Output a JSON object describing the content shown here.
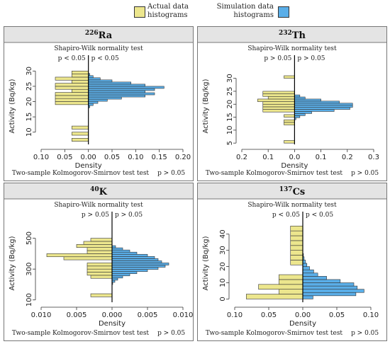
{
  "legend": {
    "actual": {
      "label_line1": "Actual data",
      "label_line2": "histograms",
      "color": "#ece68d"
    },
    "simulation": {
      "label_line1": "Simulation data",
      "label_line2": "histograms",
      "color": "#5aaee8"
    }
  },
  "chart_data": [
    {
      "type": "bar",
      "title": "Ra",
      "title_superscript": "226",
      "subtitle": "Shapiro-Wilk normality test",
      "sw_left": "p < 0.05",
      "sw_right": "p < 0.05",
      "ks_test": "Two-sample Kolmogorov-Smirnov test test",
      "ks_p": "p > 0.05",
      "xlabel": "Density",
      "ylabel": "Activity (Bq/kg)",
      "xlim": [
        -0.1,
        0.2
      ],
      "ylim": [
        6,
        31
      ],
      "xticks": [
        -0.1,
        -0.05,
        0.0,
        0.05,
        0.1,
        0.15,
        0.2
      ],
      "xtick_labels": [
        "0.10",
        "0.05",
        "0.00",
        "0.05",
        "0.10",
        "0.15",
        "0.20"
      ],
      "yticks": [
        10,
        15,
        20,
        25,
        30
      ],
      "ytick_labels": [
        "10",
        "15",
        "20",
        "25",
        "30"
      ],
      "actual": {
        "edges_from": 7.0,
        "width": 1.0,
        "density": [
          0.035,
          0,
          0.035,
          0,
          0.035,
          0,
          0,
          0,
          0,
          0,
          0,
          0,
          0.07,
          0.07,
          0.07,
          0.07,
          0.035,
          0.07,
          0.07,
          0.035,
          0.07,
          0.035,
          0.035,
          0
        ]
      },
      "simulation": {
        "edges_from": 18.0,
        "width": 0.7,
        "density": [
          0.003,
          0.01,
          0.02,
          0.04,
          0.07,
          0.12,
          0.14,
          0.12,
          0.14,
          0.16,
          0.12,
          0.09,
          0.05,
          0.025,
          0.01,
          0.003
        ]
      }
    },
    {
      "type": "bar",
      "title": "Th",
      "title_superscript": "232",
      "subtitle": "Shapiro-Wilk normality test",
      "sw_left": "p > 0.05",
      "sw_right": "p > 0.05",
      "ks_test": "Two-sample Kolmogorov-Smirnov test test",
      "ks_p": "p > 0.05",
      "xlabel": "Density",
      "ylabel": "Activity (Bq/kg)",
      "xlim": [
        -0.2,
        0.3
      ],
      "ylim": [
        4.5,
        34
      ],
      "xticks": [
        -0.2,
        -0.1,
        0.0,
        0.1,
        0.2,
        0.3
      ],
      "xtick_labels": [
        "0.2",
        "0.1",
        "0.0",
        "0.1",
        "0.2",
        "0.3"
      ],
      "yticks": [
        5,
        10,
        15,
        20,
        25,
        30
      ],
      "ytick_labels": [
        "5",
        "10",
        "15",
        "20",
        "25",
        "30"
      ],
      "actual": {
        "edges_from": 5.0,
        "width": 1.0,
        "density": [
          0.04,
          0,
          0,
          0,
          0,
          0,
          0,
          0.04,
          0.04,
          0,
          0.04,
          0,
          0.12,
          0.12,
          0.12,
          0.12,
          0.14,
          0.1,
          0.12,
          0.12,
          0,
          0,
          0,
          0,
          0,
          0.04
        ]
      },
      "simulation": {
        "edges_from": 14.0,
        "width": 0.8,
        "density": [
          0.005,
          0.02,
          0.04,
          0.065,
          0.15,
          0.21,
          0.22,
          0.22,
          0.17,
          0.1,
          0.04,
          0.02
        ]
      }
    },
    {
      "type": "bar",
      "title": "K",
      "title_superscript": "40",
      "subtitle": "Shapiro-Wilk normality test",
      "sw_left": "p > 0.05",
      "sw_right": "p > 0.05",
      "ks_test": "Two-sample Kolmogorov-Smirnov test test",
      "ks_p": "p > 0.05",
      "xlabel": "Density",
      "ylabel": "Activity (Bq/kg)",
      "xlim": [
        -0.01,
        0.01
      ],
      "ylim": [
        85,
        590
      ],
      "xticks": [
        -0.01,
        -0.005,
        0.0,
        0.005,
        0.01
      ],
      "xtick_labels": [
        "0.010",
        "0.005",
        "0.000",
        "0.005",
        "0.010"
      ],
      "yticks": [
        100,
        300,
        500
      ],
      "ytick_labels": [
        "100",
        "300",
        "500"
      ],
      "actual": {
        "edges_from": 120,
        "width": 20,
        "density": [
          0.003,
          0,
          0,
          0,
          0,
          0,
          0.003,
          0.0035,
          0.0035,
          0.0035,
          0.0035,
          0,
          0.0068,
          0.0092,
          0.0035,
          0.0035,
          0.005,
          0.004,
          0.003
        ]
      },
      "simulation": {
        "edges_from": 200,
        "width": 14,
        "density": [
          0.0001,
          0.0004,
          0.0008,
          0.0015,
          0.0025,
          0.0035,
          0.005,
          0.0065,
          0.0075,
          0.008,
          0.007,
          0.0065,
          0.006,
          0.005,
          0.0035,
          0.0025,
          0.0015,
          0.0005
        ]
      }
    },
    {
      "type": "bar",
      "title": "Cs",
      "title_superscript": "137",
      "subtitle": "Shapiro-Wilk normality test",
      "sw_left": "p < 0.05",
      "sw_right": "p < 0.05",
      "ks_test": "Two-sample Kolmogorov-Smirnov test test",
      "ks_p": "p > 0.05",
      "xlabel": "Density",
      "ylabel": "Activity (Bq/kg)",
      "xlim": [
        -0.1,
        0.1
      ],
      "ylim": [
        -2,
        46
      ],
      "xticks": [
        -0.1,
        -0.05,
        0.0,
        0.05,
        0.1
      ],
      "xtick_labels": [
        "0.10",
        "0.05",
        "0.00",
        "0.05",
        "0.10"
      ],
      "yticks": [
        0,
        10,
        20,
        30,
        40
      ],
      "ytick_labels": [
        "0",
        "10",
        "20",
        "30",
        "40"
      ],
      "actual": {
        "edges_from": 0,
        "width": 3,
        "density": [
          0.083,
          0.035,
          0.065,
          0.035,
          0.035,
          0,
          0,
          0.018,
          0.018,
          0.018,
          0.018,
          0.018,
          0.018,
          0.018,
          0.018
        ]
      },
      "simulation": {
        "edges_from": 0,
        "width": 2,
        "density": [
          0.015,
          0.078,
          0.09,
          0.08,
          0.075,
          0.055,
          0.035,
          0.022,
          0.016,
          0.01,
          0.006,
          0.004,
          0.002,
          0.001
        ]
      }
    }
  ]
}
